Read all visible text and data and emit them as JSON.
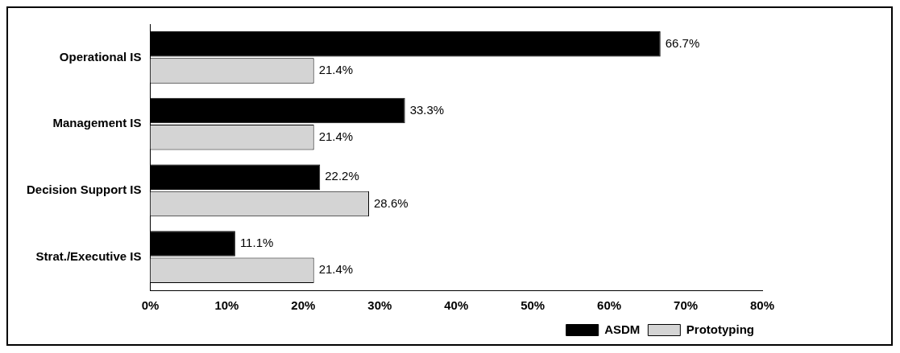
{
  "chart_data": {
    "type": "bar",
    "orientation": "horizontal",
    "categories": [
      "Operational IS",
      "Management IS",
      "Decision Support IS",
      "Strat./Executive IS"
    ],
    "series": [
      {
        "name": "ASDM",
        "color": "#000000",
        "values": [
          66.7,
          33.3,
          22.2,
          11.1
        ],
        "value_labels": [
          "66.7%",
          "33.3%",
          "22.2%",
          "11.1%"
        ]
      },
      {
        "name": "Prototyping",
        "color": "#d4d4d4",
        "values": [
          21.4,
          21.4,
          28.6,
          21.4
        ],
        "value_labels": [
          "21.4%",
          "21.4%",
          "28.6%",
          "21.4%"
        ]
      }
    ],
    "xlim": [
      0,
      80
    ],
    "xticks": [
      {
        "value": 0,
        "label": "0%"
      },
      {
        "value": 10,
        "label": "10%"
      },
      {
        "value": 20,
        "label": "20%"
      },
      {
        "value": 30,
        "label": "30%"
      },
      {
        "value": 40,
        "label": "40%"
      },
      {
        "value": 50,
        "label": "50%"
      },
      {
        "value": 60,
        "label": "60%"
      },
      {
        "value": 70,
        "label": "70%"
      },
      {
        "value": 80,
        "label": "80%"
      }
    ],
    "grid": false,
    "legend": "bottom right"
  }
}
